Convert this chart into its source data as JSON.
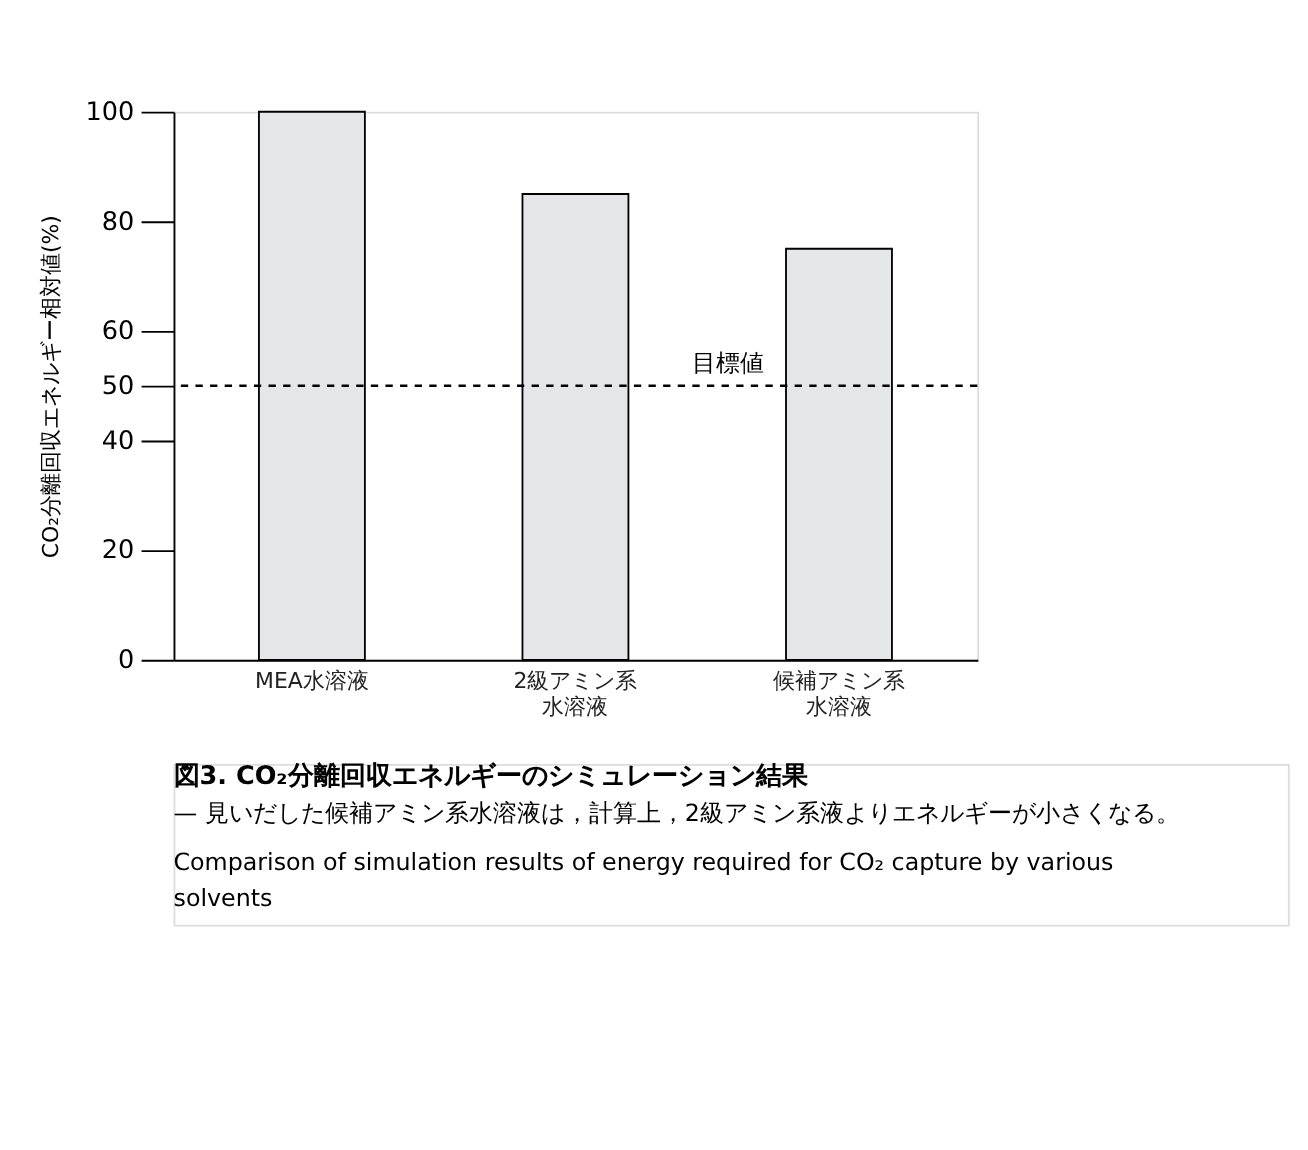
{
  "chart_data": {
    "type": "bar",
    "title": "図3. CO₂分離回収エネルギーのシミュレーション結果",
    "subtitle": "— 見いだした候補アミン系水溶液は，計算上，2級アミン系液よりエネルギーが小さくなる。",
    "ylabel": "CO₂分離回収エネルギー相対値(%)",
    "categories": [
      "MEA水溶液",
      "2級アミン系水溶液",
      "候補アミン系水溶液"
    ],
    "values": [
      100,
      85,
      75
    ],
    "color": "#e5e6e8",
    "ylim": [
      0,
      100
    ],
    "yticks": [
      0,
      20,
      40,
      50,
      60,
      80,
      100
    ],
    "grid": false,
    "ref_lines": [
      {
        "axis": "y",
        "value": 50,
        "label": "目標値",
        "color": "#000000",
        "line_style": "dashed"
      }
    ],
    "annotations": [
      "Comparison of simulation results of energy required for CO₂ capture by various solvents"
    ]
  }
}
